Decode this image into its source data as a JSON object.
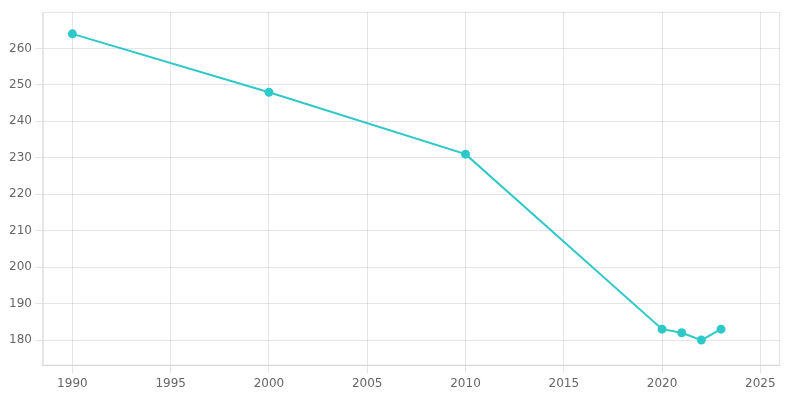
{
  "chart_data": {
    "type": "line",
    "x": [
      1990,
      2000,
      2010,
      2020,
      2021,
      2022,
      2023
    ],
    "values": [
      264,
      248,
      231,
      183,
      182,
      180,
      183
    ],
    "color": "#2EC8C8",
    "marker": "circle",
    "xlim": [
      1988.5,
      2026
    ],
    "xticks": [
      1990,
      1995,
      2000,
      2005,
      2010,
      2015,
      2020,
      2025
    ],
    "ylim": [
      173,
      270
    ],
    "yticks": [
      180,
      190,
      200,
      210,
      220,
      230,
      240,
      250,
      260
    ],
    "grid": true
  }
}
